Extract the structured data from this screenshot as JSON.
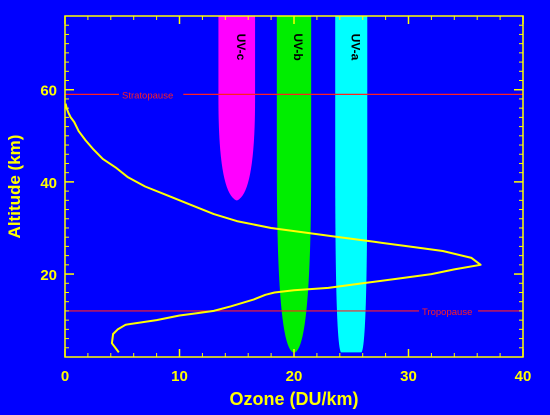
{
  "colors": {
    "background": "#0000ff",
    "axis": "#ffff00",
    "profile": "#ffff00",
    "reference_lines": "#ff2020",
    "uv_c": "#ff00ff",
    "uv_b": "#00ee00",
    "uv_a": "#00ffff",
    "band_text": "#000000"
  },
  "chart_data": {
    "type": "line",
    "title": "",
    "xlabel": "Ozone (DU/km)",
    "ylabel": "Altitude (km)",
    "xlim": [
      0,
      40
    ],
    "ylim": [
      2,
      76
    ],
    "x_ticks": [
      0,
      10,
      20,
      30,
      40
    ],
    "y_ticks": [
      20,
      40,
      60
    ],
    "grid": false,
    "series": [
      {
        "name": "",
        "x": [
          4.7,
          4.1,
          4.2,
          4.6,
          5.3,
          8,
          10,
          11.5,
          13,
          14.5,
          16.5,
          17.5,
          18.3,
          20,
          23,
          26,
          29,
          32,
          34,
          36.3,
          35.5,
          33,
          30,
          27,
          24,
          21,
          18,
          15,
          13,
          11,
          9,
          7,
          5.5,
          4.5,
          3.3,
          2.5,
          1.8,
          1.2,
          0.8,
          0.5,
          0.3,
          0.15,
          0.05
        ],
        "y": [
          3,
          5,
          7,
          8,
          9,
          10,
          11,
          11.5,
          12,
          13,
          14.5,
          15.5,
          16,
          16.5,
          17,
          18,
          19,
          20,
          21,
          22,
          23.5,
          25,
          26,
          27,
          28,
          29,
          30,
          31.5,
          33,
          35,
          37,
          39,
          41,
          43,
          45,
          47,
          49,
          51,
          53,
          54,
          55,
          56,
          57
        ]
      }
    ],
    "reference_lines": [
      {
        "label": "Stratopause",
        "y": 59
      },
      {
        "label": "Tropopause",
        "y": 12
      }
    ],
    "bands": [
      {
        "label": "UV-c",
        "center": 15,
        "top_half_width": 1.6,
        "bottom_y": 36,
        "bottom_half_width": 0.05,
        "color_key": "uv_c"
      },
      {
        "label": "UV-b",
        "center": 20,
        "top_half_width": 1.5,
        "bottom_y": 3,
        "bottom_half_width": 0.1,
        "color_key": "uv_b"
      },
      {
        "label": "UV-a",
        "center": 25,
        "top_half_width": 1.4,
        "bottom_y": 3,
        "bottom_half_width": 0.9,
        "color_key": "uv_a"
      }
    ]
  }
}
